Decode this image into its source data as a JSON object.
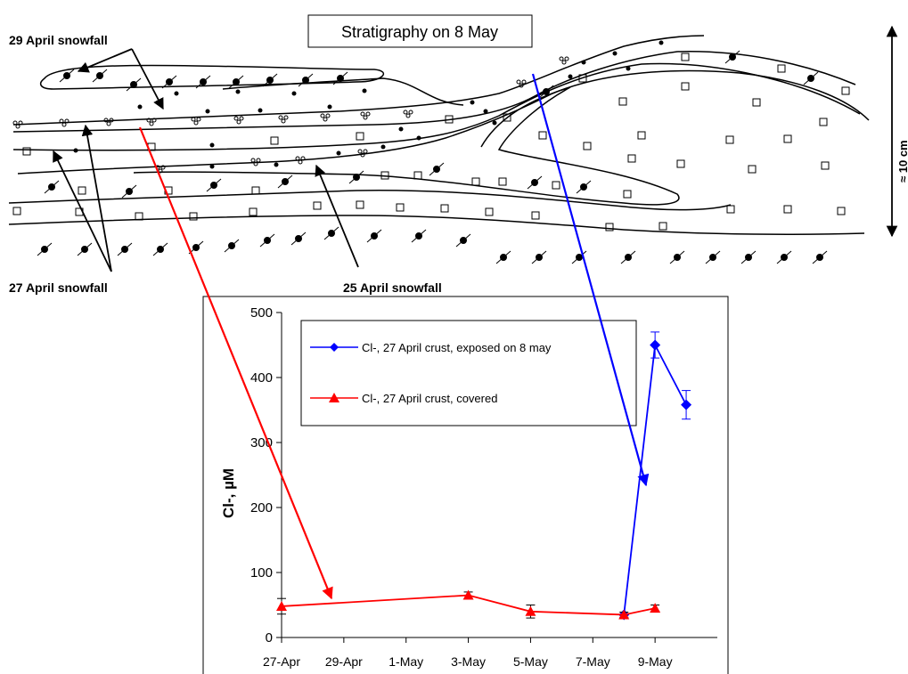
{
  "diagram": {
    "title": "Stratigraphy on 8 May",
    "labels": {
      "snow29": "29 April snowfall",
      "snow27": "27 April snowfall",
      "snow25": "25 April snowfall",
      "scale": "≈ 10 cm"
    }
  },
  "chart_data": {
    "type": "line",
    "ylabel": "Cl-, µM",
    "ylim": [
      0,
      500
    ],
    "yticks": [
      0,
      100,
      200,
      300,
      400,
      500
    ],
    "xlim": [
      "2008-04-27",
      "2008-05-11"
    ],
    "xtick_labels": [
      "27-Apr",
      "29-Apr",
      "1-May",
      "3-May",
      "5-May",
      "7-May",
      "9-May"
    ],
    "legend_position": "top",
    "series": [
      {
        "name": "Cl-, 27 April crust, exposed on 8 may",
        "color": "#0000ff",
        "marker": "diamond",
        "points": [
          {
            "x": "2008-05-08",
            "y": 35
          },
          {
            "x": "2008-05-09",
            "y": 450,
            "err": 20
          },
          {
            "x": "2008-05-10",
            "y": 358,
            "err": 22
          }
        ]
      },
      {
        "name": "Cl-, 27 April crust, covered",
        "color": "#ff0000",
        "marker": "triangle",
        "points": [
          {
            "x": "2008-04-27",
            "y": 48,
            "err": 12
          },
          {
            "x": "2008-05-03",
            "y": 65,
            "err": 5
          },
          {
            "x": "2008-05-05",
            "y": 40,
            "err": 10
          },
          {
            "x": "2008-05-08",
            "y": 35,
            "err": 4
          },
          {
            "x": "2008-05-09",
            "y": 45,
            "err": 5
          }
        ]
      }
    ]
  }
}
